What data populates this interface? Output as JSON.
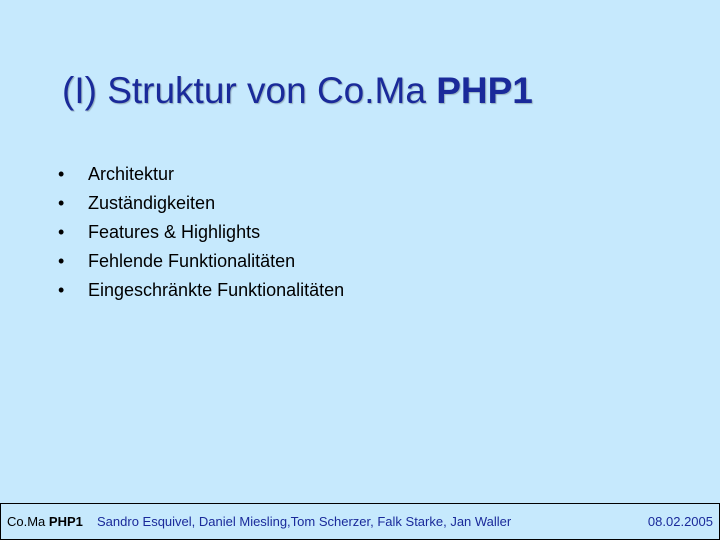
{
  "slide": {
    "title_normal": "(I) Struktur von Co.Ma ",
    "title_bold": "PHP1",
    "bullet_symbol": "•",
    "bullets": [
      "Architektur",
      "Zuständigkeiten",
      "Features & Highlights",
      "Fehlende Funktionalitäten",
      "Eingeschränkte Funktionalitäten"
    ]
  },
  "footer": {
    "brand_normal": "Co.Ma ",
    "brand_bold": "PHP1",
    "authors": "Sandro Esquivel, Daniel Miesling,Tom Scherzer, Falk Starke, Jan Waller",
    "date": "08.02.2005"
  },
  "colors": {
    "background": "#c6e9fd",
    "title": "#1a2a9a"
  }
}
